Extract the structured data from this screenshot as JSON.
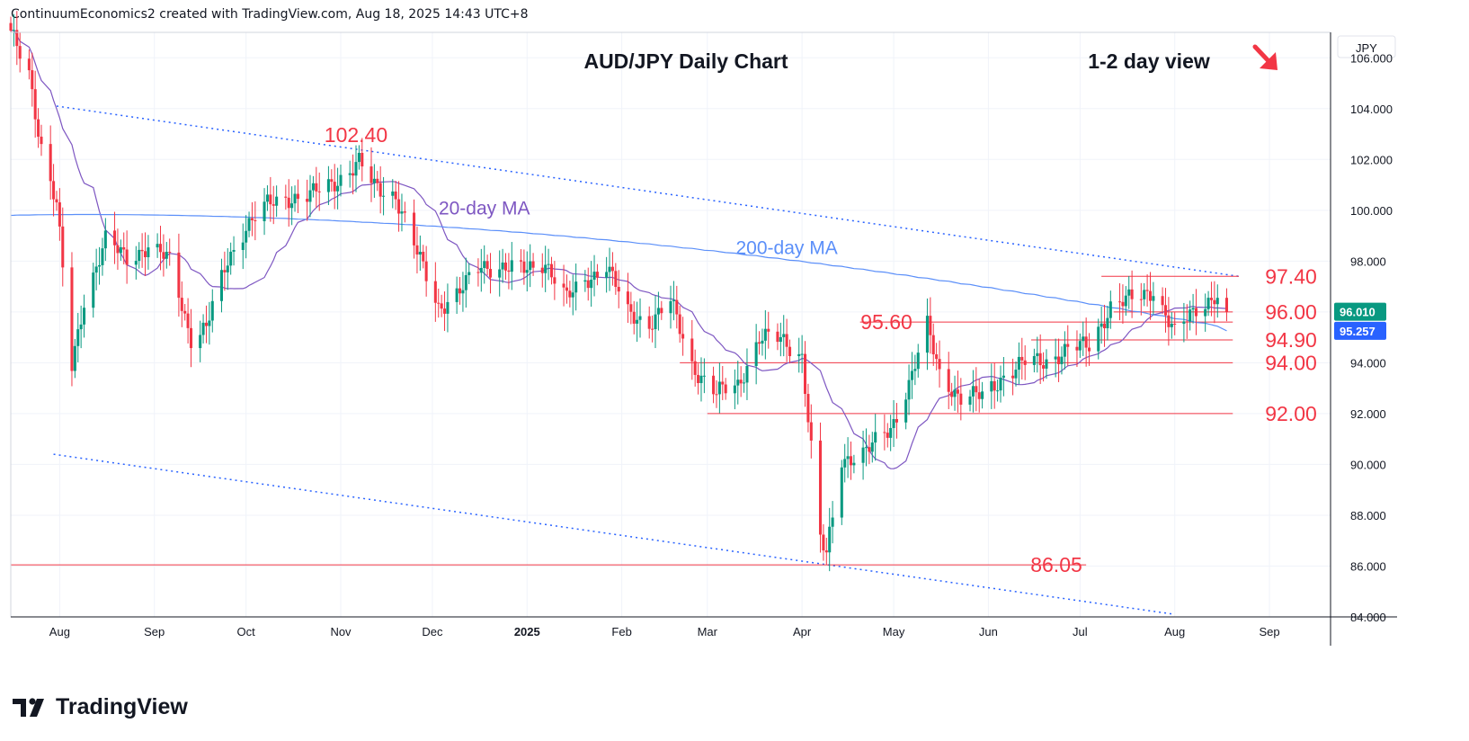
{
  "header": {
    "text": "ContinuumEconomics2 created with TradingView.com, Aug 18, 2025 14:43 UTC+8"
  },
  "branding": {
    "logo_text": "TradingView"
  },
  "colors": {
    "up": "#089981",
    "down": "#f23645",
    "ma20": "#7e57c2",
    "ma200": "#5b8ff9",
    "level": "#f23645",
    "trend": "#2962ff",
    "accent_red": "#f23645"
  },
  "chart_data": {
    "type": "candlestick",
    "title": "AUD/JPY Daily Chart",
    "subtitle": "1-2 day view",
    "direction_icon": "arrow-down-right-icon",
    "currency": "JPY",
    "ylim": [
      84,
      107
    ],
    "y_ticks": [
      "84.000",
      "86.000",
      "88.000",
      "90.000",
      "92.000",
      "94.000",
      "96.000",
      "98.000",
      "100.000",
      "102.000",
      "104.000",
      "106.000"
    ],
    "x_ticks": [
      "Aug",
      "Sep",
      "Oct",
      "Nov",
      "Dec",
      "2025",
      "Feb",
      "Mar",
      "Apr",
      "May",
      "Jun",
      "Jul",
      "Aug",
      "Sep"
    ],
    "x_tick_dates": [
      "2024-08-01",
      "2024-09-01",
      "2024-10-01",
      "2024-11-01",
      "2024-12-01",
      "2025-01-01",
      "2025-02-01",
      "2025-03-01",
      "2025-04-01",
      "2025-05-01",
      "2025-06-01",
      "2025-07-01",
      "2025-08-01",
      "2025-09-01"
    ],
    "xlim": [
      "2024-07-16",
      "2025-09-21"
    ],
    "price_path": [
      [
        "2024-07-16",
        106.9
      ],
      [
        "2024-07-22",
        105.4
      ],
      [
        "2024-07-26",
        102.5
      ],
      [
        "2024-07-31",
        100.2
      ],
      [
        "2024-08-05",
        93.8
      ],
      [
        "2024-08-09",
        96.5
      ],
      [
        "2024-08-16",
        98.8
      ],
      [
        "2024-08-23",
        98.1
      ],
      [
        "2024-08-30",
        98.6
      ],
      [
        "2024-09-06",
        98.0
      ],
      [
        "2024-09-13",
        95.0
      ],
      [
        "2024-09-18",
        95.4
      ],
      [
        "2024-09-25",
        98.0
      ],
      [
        "2024-10-01",
        99.4
      ],
      [
        "2024-10-08",
        100.2
      ],
      [
        "2024-10-15",
        100.5
      ],
      [
        "2024-10-22",
        100.6
      ],
      [
        "2024-10-29",
        101.0
      ],
      [
        "2024-11-07",
        101.9
      ],
      [
        "2024-11-12",
        100.9
      ],
      [
        "2024-11-19",
        100.6
      ],
      [
        "2024-11-26",
        98.3
      ],
      [
        "2024-12-03",
        96.2
      ],
      [
        "2024-12-10",
        96.8
      ],
      [
        "2024-12-17",
        97.8
      ],
      [
        "2024-12-24",
        97.8
      ],
      [
        "2024-12-31",
        97.6
      ],
      [
        "2025-01-07",
        98.0
      ],
      [
        "2025-01-14",
        96.5
      ],
      [
        "2025-01-21",
        97.3
      ],
      [
        "2025-01-27",
        97.9
      ],
      [
        "2025-02-03",
        95.9
      ],
      [
        "2025-02-10",
        95.6
      ],
      [
        "2025-02-17",
        96.4
      ],
      [
        "2025-02-24",
        93.9
      ],
      [
        "2025-03-04",
        92.8
      ],
      [
        "2025-03-11",
        93.1
      ],
      [
        "2025-03-18",
        95.0
      ],
      [
        "2025-03-25",
        94.9
      ],
      [
        "2025-04-01",
        94.3
      ],
      [
        "2025-04-07",
        87.0
      ],
      [
        "2025-04-09",
        86.4
      ],
      [
        "2025-04-14",
        90.2
      ],
      [
        "2025-04-22",
        90.5
      ],
      [
        "2025-04-30",
        91.4
      ],
      [
        "2025-05-06",
        93.2
      ],
      [
        "2025-05-12",
        95.4
      ],
      [
        "2025-05-16",
        93.6
      ],
      [
        "2025-05-23",
        92.6
      ],
      [
        "2025-05-30",
        92.7
      ],
      [
        "2025-06-06",
        93.5
      ],
      [
        "2025-06-13",
        94.0
      ],
      [
        "2025-06-20",
        94.1
      ],
      [
        "2025-06-27",
        94.5
      ],
      [
        "2025-07-04",
        94.7
      ],
      [
        "2025-07-11",
        96.2
      ],
      [
        "2025-07-18",
        96.5
      ],
      [
        "2025-07-25",
        96.9
      ],
      [
        "2025-08-01",
        95.1
      ],
      [
        "2025-08-08",
        96.2
      ],
      [
        "2025-08-14",
        96.6
      ],
      [
        "2025-08-18",
        96.01
      ]
    ],
    "series": [
      {
        "name": "20-day MA",
        "last": 96.0
      },
      {
        "name": "200-day MA",
        "last": 95.257
      }
    ],
    "price_labels": [
      {
        "value": 96.01,
        "text": "96.010",
        "color": "#089981"
      },
      {
        "value": 95.257,
        "text": "95.257",
        "color": "#2962ff"
      }
    ],
    "levels": [
      {
        "label": "97.40",
        "value": 97.4,
        "from": "2025-07-08",
        "to": "2025-08-22"
      },
      {
        "label": "96.00",
        "value": 96.0,
        "from": "2025-07-12",
        "to": "2025-08-20"
      },
      {
        "label": "95.60",
        "value": 95.6,
        "from": "2025-04-20",
        "to": "2025-08-20"
      },
      {
        "label": "94.90",
        "value": 94.9,
        "from": "2025-06-15",
        "to": "2025-08-20"
      },
      {
        "label": "94.00",
        "value": 94.0,
        "from": "2025-02-20",
        "to": "2025-08-20"
      },
      {
        "label": "92.00",
        "value": 92.0,
        "from": "2025-03-01",
        "to": "2025-08-20"
      },
      {
        "label": "86.05",
        "value": 86.05,
        "from": "2024-07-16",
        "to": "2025-07-03"
      }
    ],
    "annotations": [
      {
        "text": "102.40",
        "date": "2024-11-06",
        "value": 102.4
      },
      {
        "text": "20-day MA",
        "date": "2024-12-18",
        "value": 99.55
      },
      {
        "text": "200-day MA",
        "date": "2025-03-27",
        "value": 98.0
      }
    ],
    "trendlines": [
      {
        "from": [
          "2024-07-31",
          104.1
        ],
        "to": [
          "2025-08-22",
          97.4
        ]
      },
      {
        "from": [
          "2024-07-30",
          90.4
        ],
        "to": [
          "2025-08-01",
          84.1
        ]
      }
    ]
  }
}
